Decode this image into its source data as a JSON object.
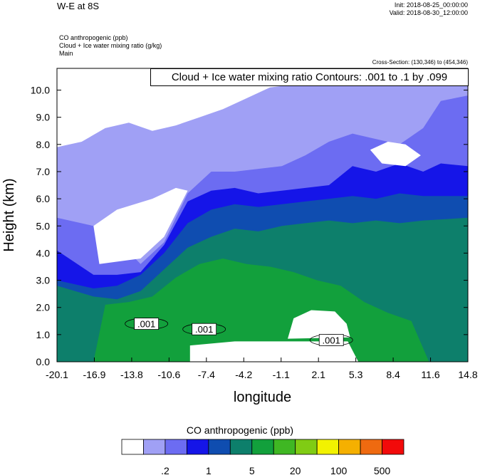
{
  "header": {
    "title": "W-E at 8S",
    "init": "Init: 2018-08-25_00:00:00",
    "valid": "Valid: 2018-08-30_12:00:00",
    "variables": [
      "CO anthropogenic   (ppb)",
      "Cloud + Ice water mixing ratio   (g/kg)",
      "Main"
    ],
    "cross_section": "Cross-Section: (130,346) to (454,346)",
    "contour_label": "Cloud + Ice water mixing ratio Contours: .001 to .1 by .099"
  },
  "chart_data": {
    "type": "heatmap",
    "xlabel": "longitude",
    "ylabel": "Height (km)",
    "xlim": [
      -20.1,
      14.8
    ],
    "ylim": [
      0.0,
      10.8
    ],
    "x_ticks": [
      "-20.1",
      "-16.9",
      "-13.8",
      "-10.6",
      "-7.4",
      "-4.2",
      "-1.1",
      "2.1",
      "5.3",
      "8.4",
      "11.6",
      "14.8"
    ],
    "y_ticks": [
      "0.0",
      "1.0",
      "2.0",
      "3.0",
      "4.0",
      "5.0",
      "6.0",
      "7.0",
      "8.0",
      "9.0",
      "10.0"
    ],
    "y_tick_values": [
      0,
      1,
      2,
      3,
      4,
      5,
      6,
      7,
      8,
      9,
      10
    ],
    "filled_layers": [
      {
        "level": 0.2,
        "color": "#a0a0f5",
        "top": [
          [
            -20.1,
            7.9
          ],
          [
            -18,
            8.1
          ],
          [
            -16,
            8.6
          ],
          [
            -14,
            8.8
          ],
          [
            -12,
            8.5
          ],
          [
            -10,
            8.7
          ],
          [
            -8,
            9.0
          ],
          [
            -6,
            9.3
          ],
          [
            -4,
            9.7
          ],
          [
            -2,
            10.1
          ],
          [
            0,
            10.2
          ],
          [
            2,
            10.4
          ],
          [
            4,
            10.5
          ],
          [
            6,
            10.6
          ],
          [
            8,
            10.7
          ],
          [
            10,
            10.7
          ],
          [
            12,
            10.8
          ],
          [
            14.8,
            10.8
          ]
        ]
      },
      {
        "level": 0.5,
        "color": "#6c6cf2",
        "top": [
          [
            -20.1,
            5.3
          ],
          [
            -17,
            5.0
          ],
          [
            -15,
            4.5
          ],
          [
            -13,
            3.6
          ],
          [
            -11,
            4.4
          ],
          [
            -9,
            6.2
          ],
          [
            -7,
            7.0
          ],
          [
            -5,
            7.0
          ],
          [
            -3,
            7.1
          ],
          [
            -1,
            7.2
          ],
          [
            1,
            7.6
          ],
          [
            3,
            8.1
          ],
          [
            5,
            8.4
          ],
          [
            7,
            8.2
          ],
          [
            9,
            8.0
          ],
          [
            11,
            8.6
          ],
          [
            12.5,
            9.6
          ],
          [
            14.8,
            9.8
          ]
        ]
      },
      {
        "level": 1,
        "color": "#1515e8",
        "top": [
          [
            -20.1,
            4.1
          ],
          [
            -17,
            3.2
          ],
          [
            -15,
            3.2
          ],
          [
            -13,
            3.3
          ],
          [
            -11,
            4.3
          ],
          [
            -9,
            5.9
          ],
          [
            -7,
            6.3
          ],
          [
            -5,
            6.4
          ],
          [
            -3,
            6.2
          ],
          [
            -1,
            6.3
          ],
          [
            1,
            6.4
          ],
          [
            3,
            6.5
          ],
          [
            5,
            7.2
          ],
          [
            7,
            7.0
          ],
          [
            9,
            7.3
          ],
          [
            11,
            7.0
          ],
          [
            12.5,
            7.3
          ],
          [
            14.8,
            7.2
          ]
        ]
      },
      {
        "level": 2,
        "color": "#0f4db0",
        "top": [
          [
            -20.1,
            3.0
          ],
          [
            -17,
            2.7
          ],
          [
            -15,
            2.8
          ],
          [
            -13,
            3.2
          ],
          [
            -11,
            4.0
          ],
          [
            -9,
            5.1
          ],
          [
            -7,
            5.6
          ],
          [
            -5,
            5.8
          ],
          [
            -3,
            5.7
          ],
          [
            -1,
            5.8
          ],
          [
            1,
            5.9
          ],
          [
            3,
            6.0
          ],
          [
            5,
            6.1
          ],
          [
            7,
            6.0
          ],
          [
            9,
            6.2
          ],
          [
            11,
            6.1
          ],
          [
            14.8,
            6.1
          ]
        ]
      },
      {
        "level": 5,
        "color": "#0d7f6b",
        "top": [
          [
            -20.1,
            2.8
          ],
          [
            -17,
            2.4
          ],
          [
            -15,
            2.3
          ],
          [
            -13,
            2.6
          ],
          [
            -11,
            3.4
          ],
          [
            -9,
            4.2
          ],
          [
            -7,
            4.6
          ],
          [
            -5,
            4.9
          ],
          [
            -3,
            4.8
          ],
          [
            -1,
            5.0
          ],
          [
            1,
            5.1
          ],
          [
            3,
            5.2
          ],
          [
            5,
            5.1
          ],
          [
            7,
            5.2
          ],
          [
            9,
            5.1
          ],
          [
            11,
            5.2
          ],
          [
            14.8,
            5.3
          ]
        ]
      },
      {
        "level": 10,
        "color": "#12a03c",
        "top": [
          [
            -20.1,
            0.0
          ],
          [
            -17,
            0.0
          ],
          [
            -16,
            2.1
          ],
          [
            -14,
            2.2
          ],
          [
            -12,
            2.4
          ],
          [
            -10,
            3.1
          ],
          [
            -8,
            3.6
          ],
          [
            -6,
            3.8
          ],
          [
            -4,
            3.6
          ],
          [
            -2,
            3.5
          ],
          [
            0,
            3.3
          ],
          [
            2,
            3.0
          ],
          [
            4,
            2.8
          ],
          [
            6,
            2.2
          ],
          [
            8,
            1.8
          ],
          [
            10,
            1.5
          ],
          [
            11.5,
            0.0
          ],
          [
            14.8,
            0.0
          ]
        ]
      }
    ],
    "clear_regions": [
      {
        "color": "#ffffff",
        "polygon": [
          [
            -20.1,
            8.0
          ],
          [
            -20.1,
            10.8
          ],
          [
            -7,
            10.8
          ],
          [
            -8,
            9.3
          ],
          [
            -10,
            8.8
          ],
          [
            -12,
            8.6
          ],
          [
            -14,
            8.9
          ],
          [
            -16,
            8.7
          ],
          [
            -18,
            8.2
          ]
        ]
      },
      {
        "color": "#ffffff",
        "polygon": [
          [
            -16.5,
            3.6
          ],
          [
            -17,
            5.0
          ],
          [
            -15,
            5.6
          ],
          [
            -12,
            6.0
          ],
          [
            -10,
            6.4
          ],
          [
            -9,
            6.3
          ],
          [
            -11,
            4.6
          ],
          [
            -13,
            3.8
          ]
        ]
      },
      {
        "color": "#ffffff",
        "polygon": [
          [
            -0.5,
            0.85
          ],
          [
            0,
            1.6
          ],
          [
            1.5,
            1.9
          ],
          [
            3.5,
            1.85
          ],
          [
            4.5,
            1.4
          ],
          [
            4.8,
            0.9
          ]
        ]
      },
      {
        "color": "#ffffff",
        "polygon": [
          [
            -8.8,
            0.0
          ],
          [
            -8.8,
            0.6
          ],
          [
            -5,
            0.75
          ],
          [
            0,
            0.75
          ],
          [
            4.6,
            0.75
          ],
          [
            5.5,
            0.0
          ]
        ]
      },
      {
        "color": "#ffffff",
        "polygon": [
          [
            6.5,
            7.8
          ],
          [
            7.5,
            7.3
          ],
          [
            9.5,
            7.2
          ],
          [
            10.8,
            7.6
          ],
          [
            9.5,
            8.0
          ],
          [
            8,
            8.1
          ]
        ]
      }
    ],
    "contours": [
      {
        "level": 0.001,
        "label": ".001",
        "x": -12.5,
        "y": 1.4
      },
      {
        "level": 0.001,
        "label": ".001",
        "x": -7.6,
        "y": 1.2
      },
      {
        "level": 0.001,
        "label": ".001",
        "x": 3.2,
        "y": 0.8
      }
    ]
  },
  "colorbar": {
    "title": "CO anthropogenic  (ppb)",
    "colors": [
      "#ffffff",
      "#a0a0f5",
      "#6c6cf2",
      "#1515e8",
      "#0f4db0",
      "#0d7f6b",
      "#12a03c",
      "#3fb723",
      "#80cc14",
      "#f2f200",
      "#f5b000",
      "#ef6a10",
      "#f20a0a"
    ],
    "labels": [
      ".2",
      "1",
      "5",
      "20",
      "100",
      "500"
    ]
  }
}
